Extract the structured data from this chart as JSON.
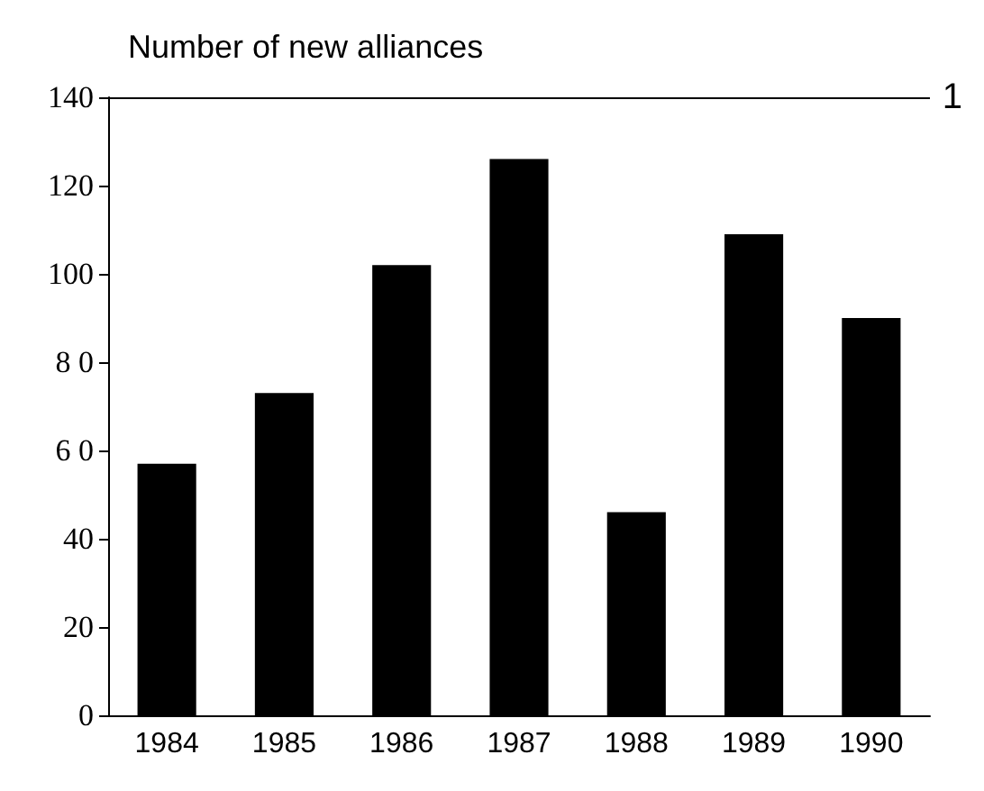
{
  "chart_data": {
    "type": "bar",
    "title": "Number of new alliances",
    "categories": [
      "1984",
      "1985",
      "1986",
      "1987",
      "1988",
      "1989",
      "1990"
    ],
    "values": [
      57,
      73,
      102,
      126,
      46,
      109,
      90
    ],
    "color": "#000000",
    "ylim": [
      0,
      140
    ],
    "yticks": [
      0,
      20,
      40,
      {
        "value": 60,
        "label": "6 0"
      },
      {
        "value": 80,
        "label": "8 0"
      },
      100,
      120,
      140
    ],
    "annotations": [
      "1"
    ],
    "grid": false
  }
}
